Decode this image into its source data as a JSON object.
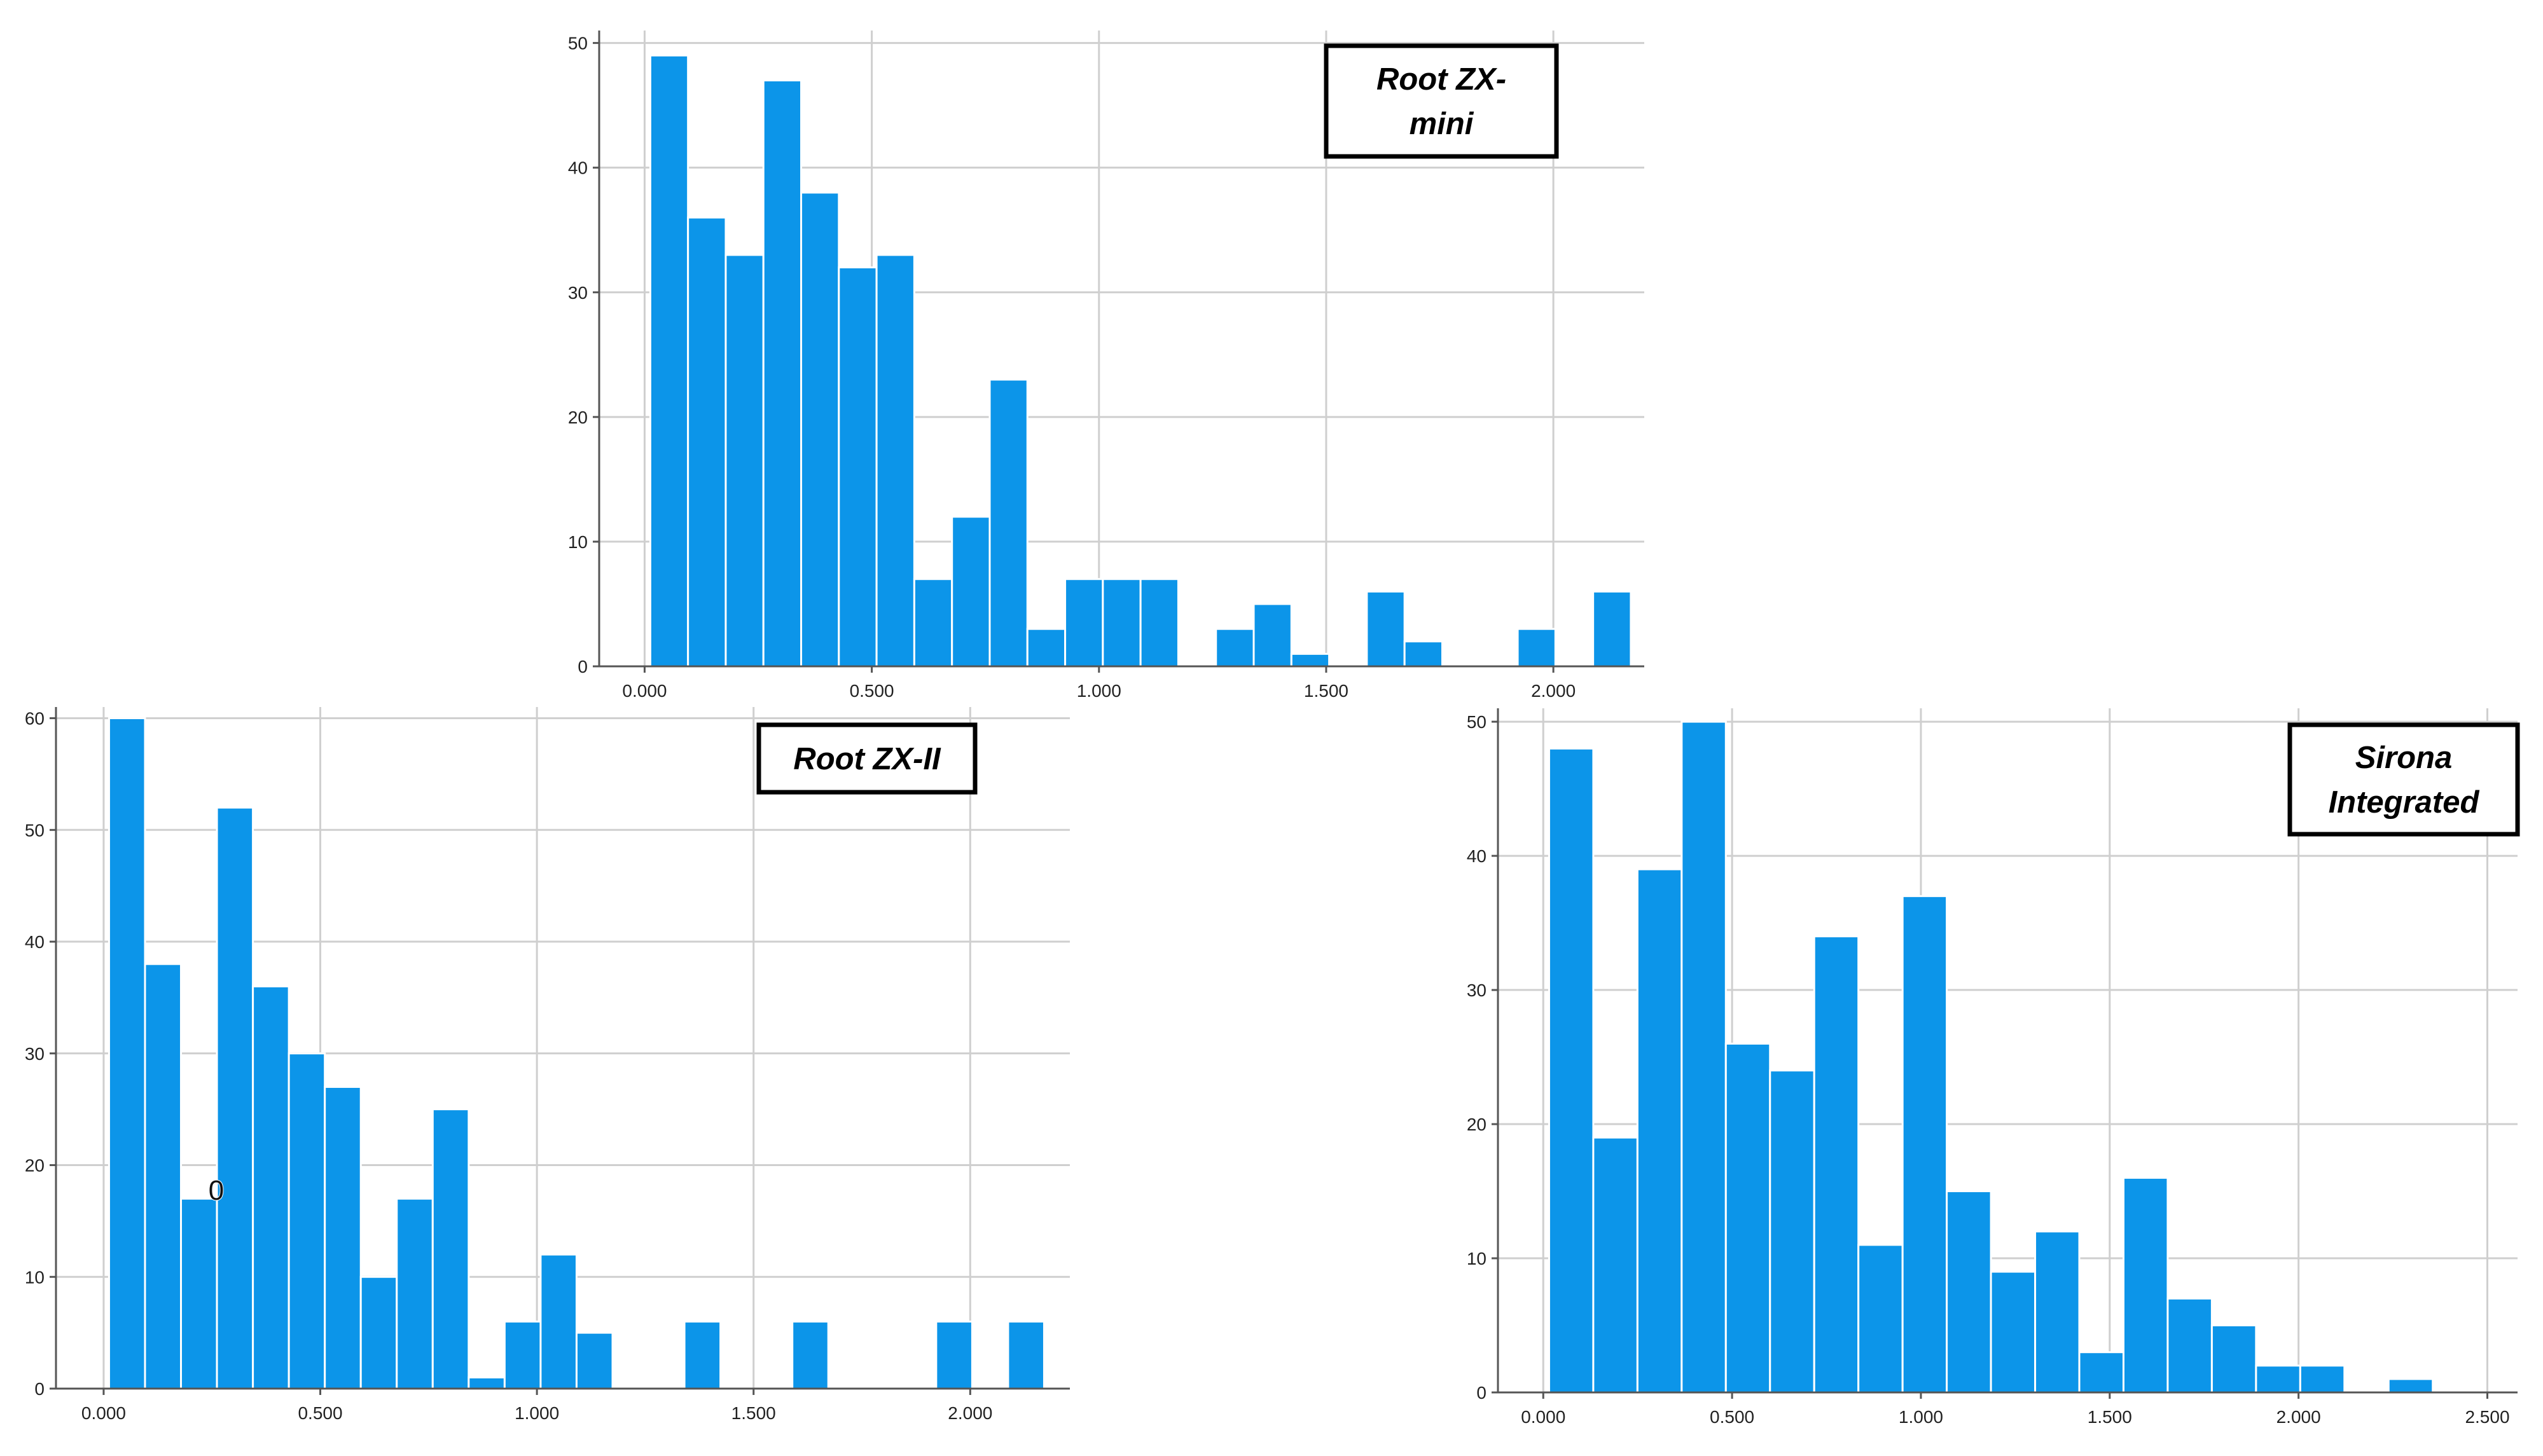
{
  "figure": {
    "colors": {
      "bar": "#0C95E9",
      "grid": "#CFCFCF",
      "axis": "#555555",
      "frame": "#000000"
    }
  },
  "chart_data": [
    {
      "id": "root-zx-mini",
      "type": "bar",
      "title_lines": [
        "Root ZX-",
        "mini"
      ],
      "xlabel": "",
      "ylabel": "",
      "xlim": [
        -0.1,
        2.2
      ],
      "ylim": [
        0,
        51
      ],
      "x_ticks": [
        0.0,
        0.5,
        1.0,
        1.5,
        2.0
      ],
      "x_tick_labels": [
        "0.000",
        "0.500",
        "1.000",
        "1.500",
        "2.000"
      ],
      "y_ticks": [
        0,
        10,
        20,
        30,
        40,
        50
      ],
      "y_tick_labels": [
        "0",
        "10",
        "20",
        "30",
        "40",
        "50"
      ],
      "bin_width": 0.083,
      "bin_centers": [
        0.054,
        0.137,
        0.22,
        0.303,
        0.386,
        0.469,
        0.552,
        0.635,
        0.718,
        0.801,
        0.884,
        0.967,
        1.05,
        1.133,
        1.216,
        1.299,
        1.382,
        1.465,
        1.548,
        1.631,
        1.714,
        1.797,
        1.88,
        1.963,
        2.046,
        2.129
      ],
      "values": [
        49,
        36,
        33,
        47,
        38,
        32,
        33,
        7,
        12,
        23,
        3,
        7,
        7,
        7,
        0,
        3,
        5,
        1,
        0,
        6,
        2,
        0,
        0,
        3,
        0,
        6
      ]
    },
    {
      "id": "root-zx-ii",
      "type": "bar",
      "title_lines": [
        "Root ZX-II"
      ],
      "xlabel": "",
      "ylabel": "",
      "xlim": [
        -0.11,
        2.23
      ],
      "ylim": [
        0,
        61
      ],
      "x_ticks": [
        0.0,
        0.5,
        1.0,
        1.5,
        2.0
      ],
      "x_tick_labels": [
        "0.000",
        "0.500",
        "1.000",
        "1.500",
        "2.000"
      ],
      "y_ticks": [
        0,
        10,
        20,
        30,
        40,
        50,
        60
      ],
      "y_tick_labels": [
        "0",
        "10",
        "20",
        "30",
        "40",
        "50",
        "60"
      ],
      "bin_width": 0.083,
      "bin_centers": [
        0.054,
        0.137,
        0.22,
        0.303,
        0.386,
        0.469,
        0.552,
        0.635,
        0.718,
        0.801,
        0.884,
        0.967,
        1.05,
        1.133,
        1.216,
        1.299,
        1.382,
        1.465,
        1.548,
        1.631,
        1.714,
        1.797,
        1.88,
        1.963,
        2.046,
        2.129
      ],
      "values": [
        60,
        38,
        17,
        52,
        36,
        30,
        27,
        10,
        17,
        25,
        1,
        6,
        12,
        5,
        0,
        0,
        6,
        0,
        0,
        6,
        0,
        0,
        0,
        6,
        0,
        6
      ],
      "annotation": {
        "text": "0",
        "x": 0.26,
        "y": 17
      }
    },
    {
      "id": "sirona-integrated",
      "type": "bar",
      "title_lines": [
        "Sirona",
        "Integrated"
      ],
      "xlabel": "",
      "ylabel": "",
      "xlim": [
        -0.12,
        2.58
      ],
      "ylim": [
        0,
        51
      ],
      "x_ticks": [
        0.0,
        0.5,
        1.0,
        1.5,
        2.0,
        2.5
      ],
      "x_tick_labels": [
        "0.000",
        "0.500",
        "1.000",
        "1.500",
        "2.000",
        "2.500"
      ],
      "y_ticks": [
        0,
        10,
        20,
        30,
        40,
        50
      ],
      "y_tick_labels": [
        "0",
        "10",
        "20",
        "30",
        "40",
        "50"
      ],
      "bin_width": 0.117,
      "bin_centers": [
        0.074,
        0.191,
        0.308,
        0.425,
        0.542,
        0.659,
        0.776,
        0.893,
        1.01,
        1.127,
        1.244,
        1.361,
        1.478,
        1.595,
        1.712,
        1.829,
        1.946,
        2.063,
        2.18,
        2.297,
        2.414
      ],
      "values": [
        48,
        19,
        39,
        50,
        26,
        24,
        34,
        11,
        37,
        15,
        9,
        12,
        3,
        16,
        7,
        5,
        2,
        2,
        0,
        1,
        0
      ]
    }
  ]
}
